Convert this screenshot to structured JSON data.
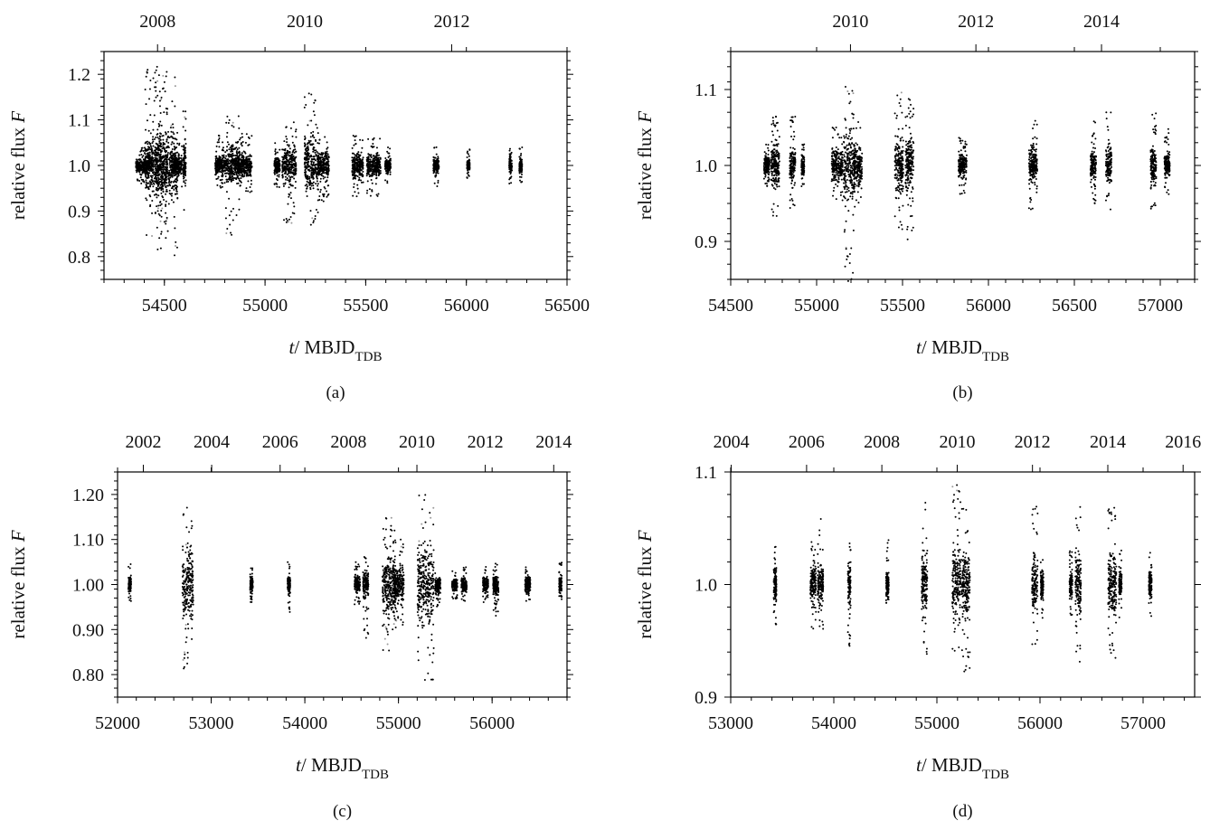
{
  "panels": [
    {
      "id": "a",
      "caption": "(a)",
      "xlabel_italic": "t",
      "xlabel_rest": "/ MBJD",
      "xlabel_sub": "TDB",
      "ylabel_rest": "relative flux ",
      "ylabel_italic": "F",
      "xlim": [
        54200,
        56500
      ],
      "ylim": [
        0.75,
        1.25
      ],
      "xticks": [
        54500,
        55000,
        55500,
        56000,
        56500
      ],
      "xtick_labels": [
        "54500",
        "55000",
        "55500",
        "56000",
        "56500"
      ],
      "yticks": [
        0.8,
        0.9,
        1.0,
        1.1,
        1.2
      ],
      "ytick_labels": [
        "0.8",
        "0.9",
        "1.0",
        "1.1",
        "1.2"
      ],
      "top_ticks": [
        54466,
        55197,
        55927
      ],
      "top_labels": [
        "2008",
        "2010",
        "2012"
      ]
    },
    {
      "id": "b",
      "caption": "(b)",
      "xlabel_italic": "t",
      "xlabel_rest": "/ MBJD",
      "xlabel_sub": "TDB",
      "ylabel_rest": "relative flux ",
      "ylabel_italic": "F",
      "xlim": [
        54500,
        57200
      ],
      "ylim": [
        0.85,
        1.15
      ],
      "xticks": [
        54500,
        55000,
        55500,
        56000,
        56500,
        57000
      ],
      "xtick_labels": [
        "54500",
        "55000",
        "55500",
        "56000",
        "56500",
        "57000"
      ],
      "yticks": [
        0.9,
        1.0,
        1.1
      ],
      "ytick_labels": [
        "0.9",
        "1.0",
        "1.1"
      ],
      "top_ticks": [
        55197,
        55927,
        56658
      ],
      "top_labels": [
        "2010",
        "2012",
        "2014"
      ]
    },
    {
      "id": "c",
      "caption": "(c)",
      "xlabel_italic": "t",
      "xlabel_rest": "/ MBJD",
      "xlabel_sub": "TDB",
      "ylabel_rest": "relative flux ",
      "ylabel_italic": "F",
      "xlim": [
        52000,
        56800
      ],
      "ylim": [
        0.75,
        1.25
      ],
      "xticks": [
        52000,
        53000,
        54000,
        55000,
        56000
      ],
      "xtick_labels": [
        "52000",
        "53000",
        "54000",
        "55000",
        "56000"
      ],
      "yticks": [
        0.8,
        0.9,
        1.0,
        1.1,
        1.2
      ],
      "ytick_labels": [
        "0.80",
        "0.90",
        "1.00",
        "1.10",
        "1.20"
      ],
      "top_ticks": [
        52275,
        53005,
        53736,
        54466,
        55197,
        55927,
        56658
      ],
      "top_labels": [
        "2002",
        "2004",
        "2006",
        "2008",
        "2010",
        "2012",
        "2014"
      ]
    },
    {
      "id": "d",
      "caption": "(d)",
      "xlabel_italic": "t",
      "xlabel_rest": "/ MBJD",
      "xlabel_sub": "TDB",
      "ylabel_rest": "relative flux ",
      "ylabel_italic": "F",
      "xlim": [
        53000,
        57500
      ],
      "ylim": [
        0.9,
        1.1
      ],
      "xticks": [
        53000,
        54000,
        55000,
        56000,
        57000
      ],
      "xtick_labels": [
        "53000",
        "54000",
        "55000",
        "56000",
        "57000"
      ],
      "yticks": [
        0.9,
        1.0,
        1.1
      ],
      "ytick_labels": [
        "0.9",
        "1.0",
        "1.1"
      ],
      "top_ticks": [
        53005,
        53736,
        54466,
        55197,
        55927,
        56658,
        57388
      ],
      "top_labels": [
        "2004",
        "2006",
        "2008",
        "2010",
        "2012",
        "2014",
        "2016"
      ]
    }
  ],
  "chart_data": [
    {
      "type": "scatter",
      "panel": "a",
      "xlim": [
        54200,
        56500
      ],
      "ylim": [
        0.75,
        1.25
      ],
      "clusters": [
        {
          "t": 54400,
          "lo": 0.96,
          "hi": 1.04,
          "n": 6
        },
        {
          "t": 54460,
          "lo": 0.84,
          "hi": 1.22,
          "n": 8
        },
        {
          "t": 54510,
          "lo": 0.79,
          "hi": 1.22,
          "n": 8
        },
        {
          "t": 54560,
          "lo": 0.95,
          "hi": 1.05,
          "n": 4
        },
        {
          "t": 54600,
          "lo": 0.9,
          "hi": 1.12,
          "n": 1
        },
        {
          "t": 54780,
          "lo": 0.95,
          "hi": 1.07,
          "n": 4
        },
        {
          "t": 54840,
          "lo": 0.84,
          "hi": 1.11,
          "n": 5
        },
        {
          "t": 54900,
          "lo": 0.94,
          "hi": 1.08,
          "n": 5
        },
        {
          "t": 55060,
          "lo": 0.95,
          "hi": 1.05,
          "n": 2
        },
        {
          "t": 55120,
          "lo": 0.87,
          "hi": 1.1,
          "n": 5
        },
        {
          "t": 55230,
          "lo": 0.86,
          "hi": 1.16,
          "n": 5
        },
        {
          "t": 55290,
          "lo": 0.92,
          "hi": 1.07,
          "n": 4
        },
        {
          "t": 55460,
          "lo": 0.93,
          "hi": 1.07,
          "n": 4
        },
        {
          "t": 55540,
          "lo": 0.93,
          "hi": 1.06,
          "n": 5
        },
        {
          "t": 55610,
          "lo": 0.96,
          "hi": 1.04,
          "n": 2
        },
        {
          "t": 55850,
          "lo": 0.95,
          "hi": 1.04,
          "n": 2
        },
        {
          "t": 56010,
          "lo": 0.97,
          "hi": 1.04,
          "n": 1
        },
        {
          "t": 56220,
          "lo": 0.96,
          "hi": 1.04,
          "n": 1
        },
        {
          "t": 56270,
          "lo": 0.96,
          "hi": 1.04,
          "n": 1
        }
      ]
    },
    {
      "type": "scatter",
      "panel": "b",
      "xlim": [
        54500,
        57200
      ],
      "ylim": [
        0.85,
        1.15
      ],
      "clusters": [
        {
          "t": 54710,
          "lo": 0.97,
          "hi": 1.03,
          "n": 2
        },
        {
          "t": 54760,
          "lo": 0.93,
          "hi": 1.07,
          "n": 3
        },
        {
          "t": 54860,
          "lo": 0.94,
          "hi": 1.07,
          "n": 2
        },
        {
          "t": 54920,
          "lo": 0.97,
          "hi": 1.03,
          "n": 1
        },
        {
          "t": 55120,
          "lo": 0.95,
          "hi": 1.05,
          "n": 4
        },
        {
          "t": 55190,
          "lo": 0.84,
          "hi": 1.12,
          "n": 4
        },
        {
          "t": 55240,
          "lo": 0.94,
          "hi": 1.06,
          "n": 3
        },
        {
          "t": 55480,
          "lo": 0.91,
          "hi": 1.1,
          "n": 3
        },
        {
          "t": 55540,
          "lo": 0.9,
          "hi": 1.09,
          "n": 3
        },
        {
          "t": 55850,
          "lo": 0.96,
          "hi": 1.04,
          "n": 3
        },
        {
          "t": 56260,
          "lo": 0.94,
          "hi": 1.06,
          "n": 3
        },
        {
          "t": 56610,
          "lo": 0.95,
          "hi": 1.06,
          "n": 2
        },
        {
          "t": 56700,
          "lo": 0.94,
          "hi": 1.07,
          "n": 2
        },
        {
          "t": 56960,
          "lo": 0.94,
          "hi": 1.08,
          "n": 2
        },
        {
          "t": 57040,
          "lo": 0.96,
          "hi": 1.05,
          "n": 2
        }
      ]
    },
    {
      "type": "scatter",
      "panel": "c",
      "xlim": [
        52000,
        56800
      ],
      "ylim": [
        0.75,
        1.25
      ],
      "clusters": [
        {
          "t": 52130,
          "lo": 0.96,
          "hi": 1.05,
          "n": 1
        },
        {
          "t": 52750,
          "lo": 0.8,
          "hi": 1.2,
          "n": 4
        },
        {
          "t": 53430,
          "lo": 0.96,
          "hi": 1.04,
          "n": 1
        },
        {
          "t": 53830,
          "lo": 0.93,
          "hi": 1.05,
          "n": 1
        },
        {
          "t": 54560,
          "lo": 0.95,
          "hi": 1.06,
          "n": 2
        },
        {
          "t": 54650,
          "lo": 0.88,
          "hi": 1.07,
          "n": 2
        },
        {
          "t": 54900,
          "lo": 0.85,
          "hi": 1.15,
          "n": 5
        },
        {
          "t": 55000,
          "lo": 0.9,
          "hi": 1.1,
          "n": 4
        },
        {
          "t": 55290,
          "lo": 0.78,
          "hi": 1.2,
          "n": 6
        },
        {
          "t": 55420,
          "lo": 0.95,
          "hi": 1.04,
          "n": 2
        },
        {
          "t": 55600,
          "lo": 0.96,
          "hi": 1.03,
          "n": 2
        },
        {
          "t": 55700,
          "lo": 0.96,
          "hi": 1.04,
          "n": 2
        },
        {
          "t": 55930,
          "lo": 0.96,
          "hi": 1.04,
          "n": 2
        },
        {
          "t": 56040,
          "lo": 0.93,
          "hi": 1.05,
          "n": 2
        },
        {
          "t": 56380,
          "lo": 0.96,
          "hi": 1.04,
          "n": 2
        },
        {
          "t": 56730,
          "lo": 0.96,
          "hi": 1.05,
          "n": 1
        }
      ]
    },
    {
      "type": "scatter",
      "panel": "d",
      "xlim": [
        53000,
        57500
      ],
      "ylim": [
        0.9,
        1.1
      ],
      "clusters": [
        {
          "t": 53430,
          "lo": 0.96,
          "hi": 1.04,
          "n": 1
        },
        {
          "t": 53800,
          "lo": 0.96,
          "hi": 1.04,
          "n": 2
        },
        {
          "t": 53870,
          "lo": 0.96,
          "hi": 1.06,
          "n": 2
        },
        {
          "t": 54150,
          "lo": 0.94,
          "hi": 1.04,
          "n": 1
        },
        {
          "t": 54520,
          "lo": 0.97,
          "hi": 1.04,
          "n": 1
        },
        {
          "t": 54880,
          "lo": 0.93,
          "hi": 1.08,
          "n": 2
        },
        {
          "t": 55190,
          "lo": 0.92,
          "hi": 1.09,
          "n": 3
        },
        {
          "t": 55280,
          "lo": 0.92,
          "hi": 1.07,
          "n": 3
        },
        {
          "t": 55950,
          "lo": 0.94,
          "hi": 1.07,
          "n": 2
        },
        {
          "t": 56020,
          "lo": 0.97,
          "hi": 1.03,
          "n": 1
        },
        {
          "t": 56300,
          "lo": 0.97,
          "hi": 1.03,
          "n": 1
        },
        {
          "t": 56370,
          "lo": 0.93,
          "hi": 1.07,
          "n": 2
        },
        {
          "t": 56700,
          "lo": 0.93,
          "hi": 1.07,
          "n": 3
        },
        {
          "t": 56780,
          "lo": 0.97,
          "hi": 1.04,
          "n": 1
        },
        {
          "t": 57070,
          "lo": 0.97,
          "hi": 1.03,
          "n": 1
        }
      ]
    }
  ]
}
